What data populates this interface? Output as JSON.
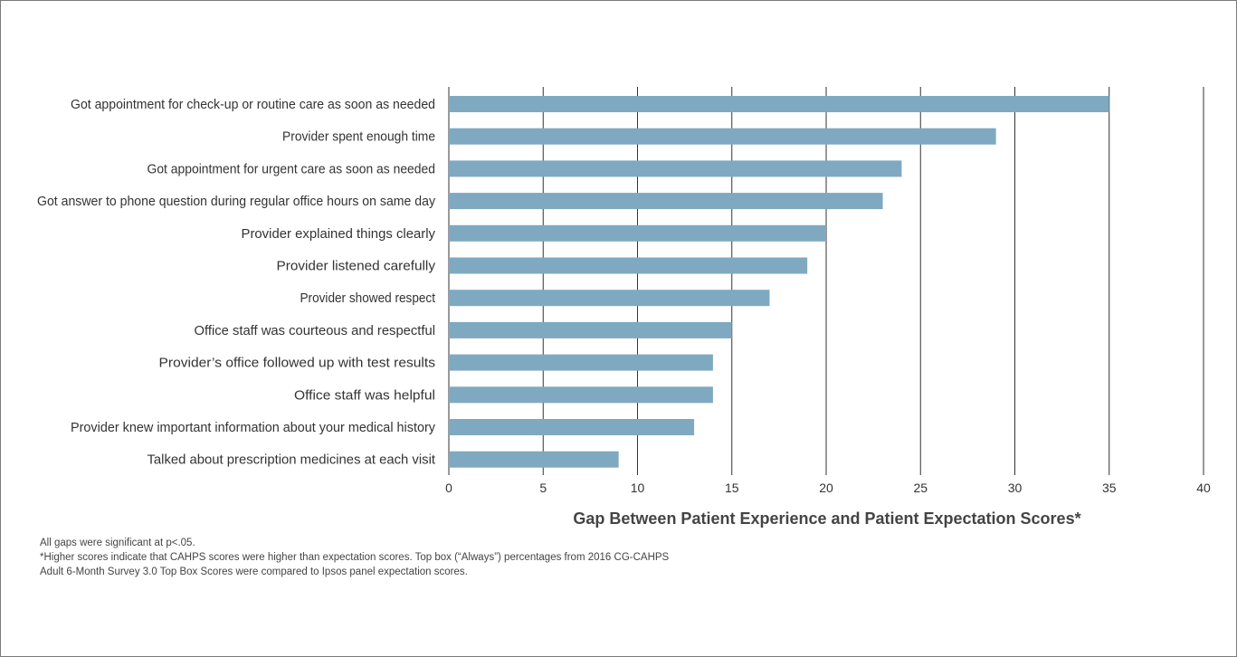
{
  "chart_data": {
    "type": "bar",
    "orientation": "horizontal",
    "categories": [
      "Got appointment for check-up or routine care as soon as needed",
      "Provider spent enough time",
      "Got appointment for urgent care as soon as needed",
      "Got answer to phone question during regular office hours on same day",
      "Provider explained things clearly",
      "Provider listened carefully",
      "Provider showed respect",
      "Office staff was courteous and respectful",
      "Provider’s office followed up with test results",
      "Office staff was helpful",
      "Provider knew important information about your medical history",
      "Talked about prescription medicines at each visit"
    ],
    "values": [
      35,
      29,
      24,
      23,
      20,
      19,
      17,
      15,
      14,
      14,
      13,
      9
    ],
    "xlabel": "Gap Between Patient Experience and Patient Expectation Scores*",
    "xlim": [
      0,
      40
    ],
    "xticks": [
      0,
      5,
      10,
      15,
      20,
      25,
      30,
      35,
      40
    ],
    "grid": "vertical",
    "bar_color": "#7fa9c1",
    "grid_color": "#333333"
  },
  "notes": {
    "line1": "All gaps were significant at p<.05.",
    "line2": "*Higher scores indicate that CAHPS scores were higher than expectation scores. Top box (“Always”) percentages from 2016 CG-CAHPS",
    "line3": "Adult 6-Month Survey 3.0 Top Box Scores were compared to Ipsos panel expectation scores."
  }
}
